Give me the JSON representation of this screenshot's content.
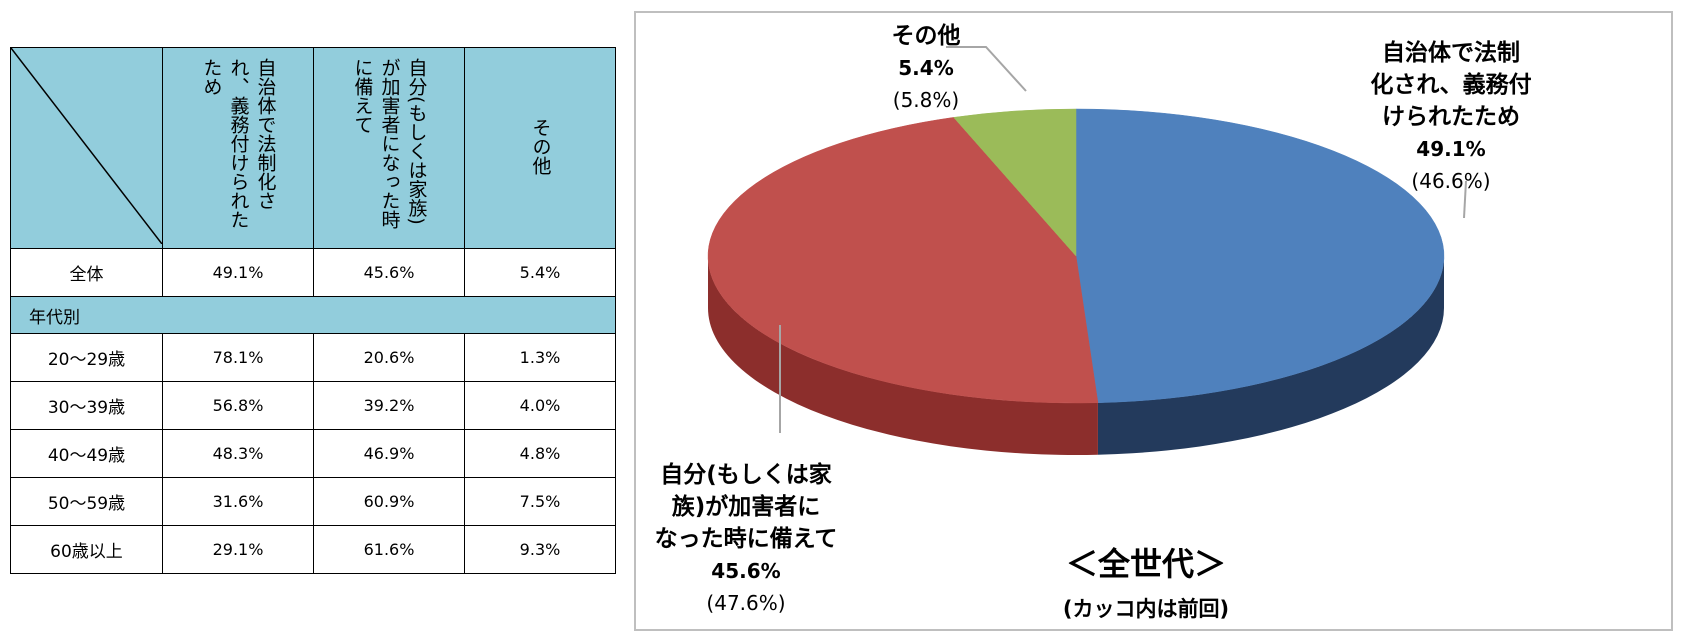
{
  "table": {
    "headers": [
      "自治体で法制化され、義務付けられたため",
      "自分(もしくは家族)が加害者になった時に備えて",
      "その他"
    ],
    "total_row": {
      "label": "全体",
      "values": [
        "49.1%",
        "45.6%",
        "5.4%"
      ]
    },
    "section_label": "年代別",
    "rows": [
      {
        "label": "20～29歳",
        "values": [
          "78.1%",
          "20.6%",
          "1.3%"
        ]
      },
      {
        "label": "30～39歳",
        "values": [
          "56.8%",
          "39.2%",
          "4.0%"
        ]
      },
      {
        "label": "40～49歳",
        "values": [
          "48.3%",
          "46.9%",
          "4.8%"
        ]
      },
      {
        "label": "50～59歳",
        "values": [
          "31.6%",
          "60.9%",
          "7.5%"
        ]
      },
      {
        "label": "60歳以上",
        "values": [
          "29.1%",
          "61.6%",
          "9.3%"
        ]
      }
    ]
  },
  "chart_data": {
    "type": "pie",
    "title": "＜全世代＞",
    "subtitle": "(カッコ内は前回)",
    "slices": [
      {
        "name": "自治体で法制化され、義務付けられたため",
        "name_lines": [
          "自治体で法制",
          "化され、義務付",
          "けられたため"
        ],
        "value": 49.1,
        "label": "49.1%",
        "previous": "(46.6%)",
        "color": "#4f81bd",
        "side_color": "#233a5c"
      },
      {
        "name": "自分(もしくは家族)が加害者になった時に備えて",
        "name_lines": [
          "自分(もしくは家",
          "族)が加害者に",
          "なった時に備えて"
        ],
        "value": 45.6,
        "label": "45.6%",
        "previous": "(47.6%)",
        "color": "#c0504d",
        "side_color": "#8c2e2c"
      },
      {
        "name": "その他",
        "name_lines": [
          "その他"
        ],
        "value": 5.4,
        "label": "5.4%",
        "previous": "(5.8%)",
        "color": "#9bbb59",
        "side_color": "#5f7535"
      }
    ]
  }
}
